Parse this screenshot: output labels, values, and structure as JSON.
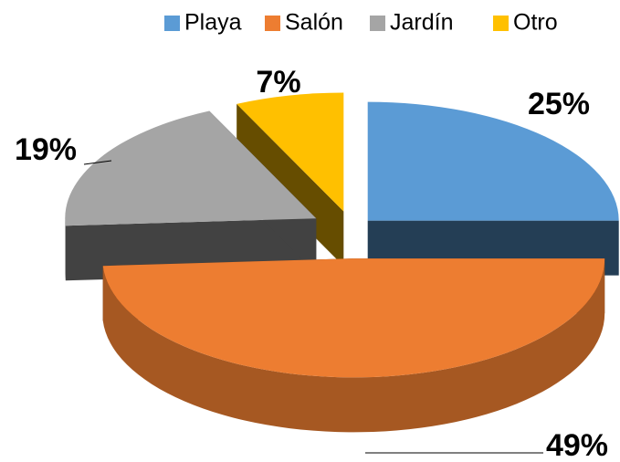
{
  "chart_data": {
    "type": "pie",
    "categories": [
      "Playa",
      "Salón",
      "Jardín",
      "Otro"
    ],
    "values": [
      25,
      49,
      19,
      7
    ],
    "value_labels": [
      "25%",
      "49%",
      "19%",
      "7%"
    ],
    "colors": [
      "#5b9bd5",
      "#ed7d31",
      "#a5a5a5",
      "#ffc000"
    ],
    "legend": "top"
  }
}
